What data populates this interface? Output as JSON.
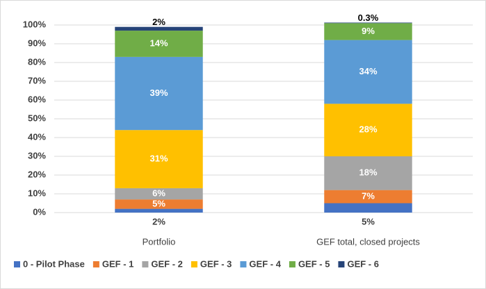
{
  "chart_data": {
    "type": "stacked_bar",
    "categories": [
      "Portfolio",
      "GEF total, closed projects"
    ],
    "series": [
      {
        "name": "0 - Pilot Phase",
        "color": "#4472c4",
        "values": [
          2,
          5
        ],
        "value_labels": [
          "2%",
          "5%"
        ]
      },
      {
        "name": "GEF - 1",
        "color": "#ed7d31",
        "values": [
          5,
          7
        ],
        "value_labels": [
          "5%",
          "7%"
        ]
      },
      {
        "name": "GEF - 2",
        "color": "#a5a5a5",
        "values": [
          6,
          18
        ],
        "value_labels": [
          "6%",
          "18%"
        ]
      },
      {
        "name": "GEF - 3",
        "color": "#ffc000",
        "values": [
          31,
          28
        ],
        "value_labels": [
          "31%",
          "28%"
        ]
      },
      {
        "name": "GEF - 4",
        "color": "#5b9bd5",
        "values": [
          39,
          34
        ],
        "value_labels": [
          "39%",
          "34%"
        ]
      },
      {
        "name": "GEF - 5",
        "color": "#70ad47",
        "values": [
          14,
          9
        ],
        "value_labels": [
          "14%",
          "9%"
        ]
      },
      {
        "name": "GEF - 6",
        "color": "#264478",
        "values": [
          2,
          0.3
        ],
        "value_labels": [
          "2%",
          "0.3%"
        ]
      }
    ],
    "ylim": [
      0,
      100
    ],
    "yticks": [
      {
        "value": 0,
        "label": "0%"
      },
      {
        "value": 10,
        "label": "10%"
      },
      {
        "value": 20,
        "label": "20%"
      },
      {
        "value": 30,
        "label": "30%"
      },
      {
        "value": 40,
        "label": "40%"
      },
      {
        "value": 50,
        "label": "50%"
      },
      {
        "value": 60,
        "label": "60%"
      },
      {
        "value": 70,
        "label": "70%"
      },
      {
        "value": 80,
        "label": "80%"
      },
      {
        "value": 90,
        "label": "90%"
      },
      {
        "value": 100,
        "label": "100%"
      }
    ],
    "grid": true,
    "legend": "bottom"
  }
}
